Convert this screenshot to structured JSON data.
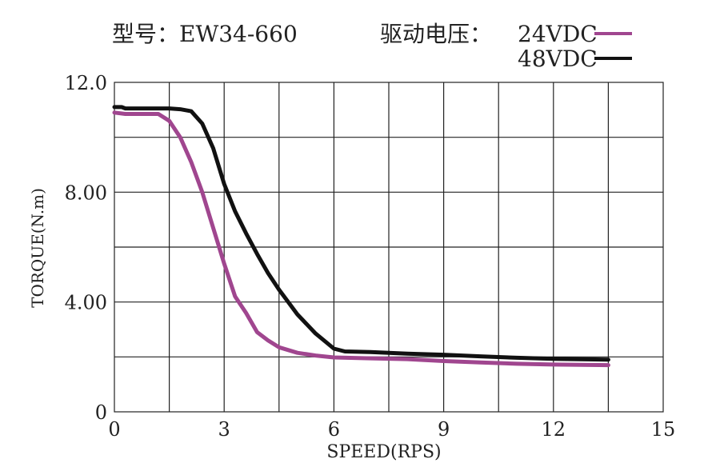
{
  "header": {
    "model_label": "型号：EW34-660",
    "voltage_label": "驱动电压：",
    "legend": [
      {
        "text": "24VDC",
        "color": "#a0468f"
      },
      {
        "text": "48VDC",
        "color": "#111111"
      }
    ]
  },
  "chart_data": {
    "type": "line",
    "title": "型号：EW34-660",
    "xlabel": "SPEED(RPS)",
    "ylabel": "TORQUE(N.m)",
    "xlim": [
      0,
      15
    ],
    "ylim": [
      0,
      12
    ],
    "x_ticks": [
      0,
      3,
      6,
      9,
      12,
      15
    ],
    "x_tick_labels": [
      "0",
      "3",
      "6",
      "9",
      "12",
      "15"
    ],
    "y_ticks": [
      0,
      4,
      8,
      12
    ],
    "y_tick_labels": [
      "0",
      "4.00",
      "8.00",
      "12.0"
    ],
    "x_grid_step": 1.5,
    "y_grid_step": 2,
    "grid": true,
    "legend_position": "top-right",
    "series": [
      {
        "name": "24VDC",
        "color": "#a0468f",
        "x": [
          0,
          0.3,
          1.2,
          1.5,
          1.8,
          2.1,
          2.4,
          2.7,
          3.0,
          3.3,
          3.6,
          3.9,
          4.2,
          4.5,
          5.0,
          5.5,
          6.0,
          7.0,
          8.0,
          9.0,
          10.0,
          11.0,
          12.0,
          13.5
        ],
        "y": [
          10.9,
          10.85,
          10.85,
          10.6,
          10.0,
          9.1,
          8.0,
          6.7,
          5.4,
          4.2,
          3.6,
          2.9,
          2.6,
          2.35,
          2.15,
          2.05,
          1.98,
          1.95,
          1.92,
          1.85,
          1.8,
          1.75,
          1.72,
          1.7
        ]
      },
      {
        "name": "48VDC",
        "color": "#111111",
        "x": [
          0,
          0.2,
          0.3,
          1.5,
          1.8,
          2.1,
          2.4,
          2.7,
          3.0,
          3.3,
          3.6,
          3.9,
          4.2,
          4.5,
          5.0,
          5.5,
          6.0,
          6.3,
          7.0,
          8.0,
          9.0,
          10.0,
          11.0,
          12.0,
          13.5
        ],
        "y": [
          11.1,
          11.1,
          11.05,
          11.05,
          11.02,
          10.95,
          10.5,
          9.6,
          8.3,
          7.3,
          6.5,
          5.75,
          5.05,
          4.45,
          3.55,
          2.85,
          2.3,
          2.2,
          2.18,
          2.12,
          2.08,
          2.02,
          1.97,
          1.93,
          1.9
        ]
      }
    ]
  }
}
